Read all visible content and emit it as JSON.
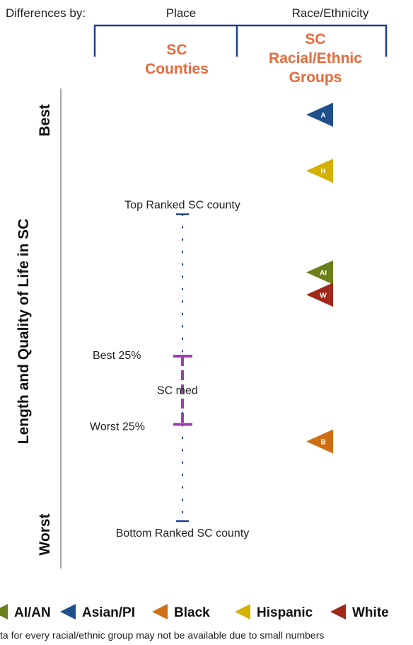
{
  "chart_data": {
    "type": "scatter",
    "header": {
      "prefix": "Differences by:",
      "columns": [
        {
          "category": "Place",
          "group_lines": [
            "SC",
            "Counties"
          ]
        },
        {
          "category": "Race/Ethnicity",
          "group_lines": [
            "SC",
            "Racial/Ethnic",
            "Groups"
          ]
        }
      ]
    },
    "ylabel": "Length and Quality of Life in SC",
    "y_top_label": "Best",
    "y_bottom_label": "Worst",
    "county_range": {
      "top_label": "Top Ranked SC county",
      "best25_label": "Best 25%",
      "median_label": "SC med",
      "worst25_label": "Worst 25%",
      "bottom_label": "Bottom Ranked SC county",
      "top": 0.755,
      "best25": 0.406,
      "median": 0.321,
      "worst25": 0.238,
      "bottom": 0.0
    },
    "groups": [
      {
        "letter": "A",
        "name": "Asian/PI",
        "value": 1.0,
        "color": "#1f4e8c"
      },
      {
        "letter": "H",
        "name": "Hispanic",
        "value": 0.862,
        "color": "#d4b000"
      },
      {
        "letter": "AI",
        "name": "AI/AN",
        "value": 0.612,
        "color": "#6b7f1a"
      },
      {
        "letter": "W",
        "name": "White",
        "value": 0.557,
        "color": "#a0281a"
      },
      {
        "letter": "B",
        "name": "Black",
        "value": 0.196,
        "color": "#cf6e12"
      }
    ],
    "legend_order": [
      "AI/AN",
      "Asian/PI",
      "Black",
      "Hispanic",
      "White"
    ],
    "footnote": "ta for every racial/ethnic group may not be available due to small numbers"
  }
}
